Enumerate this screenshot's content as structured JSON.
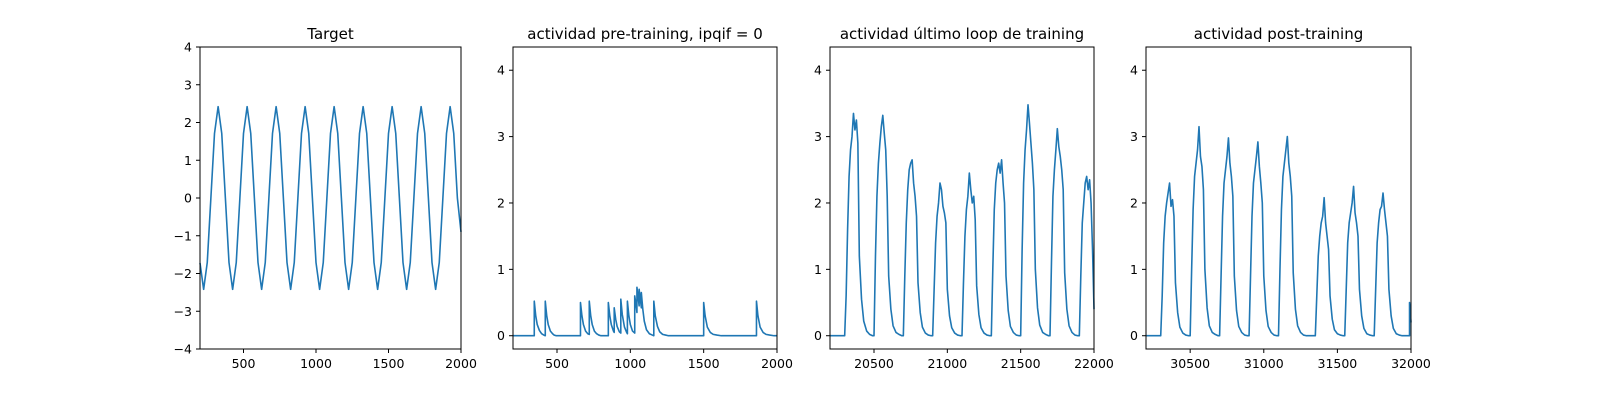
{
  "chart_data": [
    {
      "type": "line",
      "title": "Target",
      "xlabel": "",
      "ylabel": "",
      "xlim": [
        200,
        2000
      ],
      "ylim": [
        -4,
        4
      ],
      "xticks": [
        500,
        1000,
        1500,
        2000
      ],
      "yticks": [
        -4,
        -3,
        -2,
        -1,
        0,
        1,
        2,
        3,
        4
      ],
      "xtick_labels": [
        "500",
        "1000",
        "1500",
        "2000"
      ],
      "ytick_labels": [
        "−4",
        "−3",
        "−2",
        "−1",
        "0",
        "1",
        "2",
        "3",
        "4"
      ],
      "grid": false,
      "series": [
        {
          "color": "#1f77b4",
          "x": [
            200,
            225,
            250,
            275,
            300,
            325,
            350,
            375,
            400,
            425,
            450,
            475,
            500,
            525,
            550,
            575,
            600,
            625,
            650,
            675,
            700,
            725,
            750,
            775,
            800,
            825,
            850,
            875,
            900,
            925,
            950,
            975,
            1000,
            1025,
            1050,
            1075,
            1100,
            1125,
            1150,
            1175,
            1200,
            1225,
            1250,
            1275,
            1300,
            1325,
            1350,
            1375,
            1400,
            1425,
            1450,
            1475,
            1500,
            1525,
            1550,
            1575,
            1600,
            1625,
            1650,
            1675,
            1700,
            1725,
            1750,
            1775,
            1800,
            1825,
            1850,
            1875,
            1900,
            1925,
            1950,
            1975,
            2000
          ],
          "y": [
            -1.72,
            -2.42,
            -1.71,
            0.0,
            1.71,
            2.42,
            1.71,
            0.0,
            -1.71,
            -2.42,
            -1.71,
            0.0,
            1.71,
            2.42,
            1.71,
            0.0,
            -1.71,
            -2.42,
            -1.71,
            0.0,
            1.71,
            2.42,
            1.71,
            0.0,
            -1.71,
            -2.42,
            -1.71,
            0.0,
            1.71,
            2.42,
            1.71,
            0.0,
            -1.71,
            -2.42,
            -1.71,
            0.0,
            1.71,
            2.42,
            1.71,
            0.0,
            -1.71,
            -2.42,
            -1.71,
            0.0,
            1.71,
            2.42,
            1.71,
            0.0,
            -1.71,
            -2.42,
            -1.71,
            0.0,
            1.71,
            2.42,
            1.71,
            0.0,
            -1.71,
            -2.42,
            -1.71,
            0.0,
            1.71,
            2.42,
            1.71,
            0.0,
            -1.71,
            -2.42,
            -1.71,
            0.0,
            1.71,
            2.42,
            1.71,
            0.0,
            -0.9
          ]
        }
      ]
    },
    {
      "type": "line",
      "title": "actividad pre-training, ipqif = 0",
      "xlabel": "",
      "ylabel": "",
      "xlim": [
        200,
        2000
      ],
      "ylim": [
        -0.2,
        4.35
      ],
      "xticks": [
        500,
        1000,
        1500,
        2000
      ],
      "yticks": [
        0,
        1,
        2,
        3,
        4
      ],
      "xtick_labels": [
        "500",
        "1000",
        "1500",
        "2000"
      ],
      "ytick_labels": [
        "0",
        "1",
        "2",
        "3",
        "4"
      ],
      "grid": false,
      "series": [
        {
          "color": "#1f77b4",
          "x": [
            200,
            345,
            345,
            355,
            365,
            380,
            395,
            410,
            420,
            420,
            430,
            440,
            455,
            470,
            480,
            495,
            660,
            660,
            670,
            680,
            695,
            710,
            720,
            720,
            730,
            740,
            755,
            770,
            785,
            800,
            850,
            850,
            860,
            870,
            885,
            890,
            890,
            900,
            910,
            925,
            935,
            935,
            945,
            960,
            975,
            980,
            980,
            990,
            1000,
            1015,
            1030,
            1030,
            1040,
            1045,
            1045,
            1055,
            1060,
            1060,
            1070,
            1075,
            1075,
            1085,
            1095,
            1110,
            1130,
            1150,
            1160,
            1160,
            1170,
            1185,
            1200,
            1220,
            1240,
            1260,
            1300,
            1500,
            1500,
            1510,
            1525,
            1545,
            1565,
            1590,
            1620,
            1700,
            1860,
            1860,
            1870,
            1885,
            1905,
            1925,
            1950,
            1980,
            2000
          ],
          "y": [
            0,
            0,
            0.52,
            0.3,
            0.17,
            0.08,
            0.03,
            0.01,
            0,
            0.52,
            0.3,
            0.17,
            0.07,
            0.03,
            0.01,
            0,
            0,
            0.5,
            0.3,
            0.17,
            0.07,
            0.03,
            0.02,
            0.52,
            0.3,
            0.17,
            0.07,
            0.03,
            0.01,
            0,
            0,
            0.5,
            0.3,
            0.17,
            0.07,
            0.05,
            0.42,
            0.25,
            0.14,
            0.06,
            0.04,
            0.55,
            0.32,
            0.13,
            0.05,
            0.03,
            0.52,
            0.3,
            0.17,
            0.07,
            0.04,
            0.6,
            0.45,
            0.35,
            0.73,
            0.55,
            0.45,
            0.7,
            0.52,
            0.42,
            0.65,
            0.4,
            0.22,
            0.09,
            0.03,
            0.01,
            0,
            0.52,
            0.3,
            0.14,
            0.06,
            0.02,
            0.01,
            0,
            0,
            0,
            0.5,
            0.3,
            0.13,
            0.05,
            0.02,
            0.01,
            0,
            0,
            0,
            0.52,
            0.3,
            0.13,
            0.05,
            0.02,
            0.01,
            0,
            0
          ]
        }
      ]
    },
    {
      "type": "line",
      "title": "actividad último loop de training",
      "xlabel": "",
      "ylabel": "",
      "xlim": [
        20200,
        22000
      ],
      "ylim": [
        -0.2,
        4.35
      ],
      "xticks": [
        20500,
        21000,
        21500,
        22000
      ],
      "yticks": [
        0,
        1,
        2,
        3,
        4
      ],
      "xtick_labels": [
        "20500",
        "21000",
        "21500",
        "22000"
      ],
      "ytick_labels": [
        "0",
        "1",
        "2",
        "3",
        "4"
      ],
      "grid": false,
      "series": [
        {
          "color": "#1f77b4",
          "x": [
            20200,
            20300,
            20310,
            20320,
            20330,
            20340,
            20350,
            20360,
            20370,
            20380,
            20390,
            20400,
            20415,
            20430,
            20450,
            20470,
            20490,
            20500,
            20510,
            20520,
            20530,
            20540,
            20550,
            20560,
            20570,
            20580,
            20590,
            20600,
            20615,
            20630,
            20650,
            20670,
            20690,
            20700,
            20710,
            20720,
            20730,
            20740,
            20750,
            20760,
            20770,
            20780,
            20790,
            20800,
            20815,
            20830,
            20850,
            20870,
            20890,
            20900,
            20910,
            20920,
            20930,
            20940,
            20950,
            20960,
            20970,
            20980,
            20990,
            21000,
            21015,
            21030,
            21050,
            21070,
            21090,
            21100,
            21110,
            21120,
            21130,
            21140,
            21150,
            21160,
            21170,
            21180,
            21190,
            21200,
            21215,
            21230,
            21250,
            21270,
            21290,
            21300,
            21310,
            21320,
            21330,
            21340,
            21350,
            21360,
            21370,
            21380,
            21390,
            21400,
            21415,
            21430,
            21450,
            21470,
            21490,
            21500,
            21510,
            21520,
            21530,
            21540,
            21550,
            21560,
            21570,
            21580,
            21590,
            21600,
            21615,
            21630,
            21650,
            21670,
            21690,
            21700,
            21710,
            21720,
            21730,
            21740,
            21750,
            21760,
            21770,
            21780,
            21790,
            21800,
            21815,
            21830,
            21850,
            21870,
            21890,
            21900,
            21910,
            21920,
            21930,
            21940,
            21950,
            21960,
            21970,
            21980,
            21990,
            22000
          ],
          "y": [
            0,
            0,
            0.6,
            1.6,
            2.4,
            2.8,
            3.0,
            3.35,
            3.1,
            3.25,
            2.9,
            1.2,
            0.55,
            0.22,
            0.07,
            0.02,
            0,
            0,
            1.2,
            2.1,
            2.6,
            2.9,
            3.15,
            3.32,
            3.05,
            2.8,
            2.1,
            0.9,
            0.4,
            0.15,
            0.05,
            0.02,
            0,
            0,
            0.9,
            1.7,
            2.2,
            2.5,
            2.6,
            2.65,
            2.3,
            2.1,
            1.8,
            0.8,
            0.35,
            0.13,
            0.04,
            0.01,
            0,
            0,
            0.7,
            1.4,
            1.8,
            2.0,
            2.3,
            2.2,
            1.95,
            1.85,
            1.7,
            0.7,
            0.3,
            0.12,
            0.04,
            0.01,
            0,
            0,
            0.8,
            1.5,
            1.9,
            2.1,
            2.45,
            2.2,
            2.0,
            2.1,
            1.75,
            0.75,
            0.32,
            0.12,
            0.04,
            0.01,
            0,
            0,
            1.0,
            1.9,
            2.3,
            2.5,
            2.6,
            2.45,
            2.65,
            2.3,
            2.0,
            0.9,
            0.38,
            0.14,
            0.05,
            0.01,
            0,
            0,
            1.3,
            2.3,
            2.8,
            3.1,
            3.48,
            3.2,
            2.9,
            2.6,
            2.2,
            1.0,
            0.42,
            0.16,
            0.05,
            0.02,
            0,
            0,
            1.1,
            2.1,
            2.5,
            2.8,
            3.12,
            2.85,
            2.7,
            2.5,
            2.2,
            0.95,
            0.4,
            0.15,
            0.05,
            0.01,
            0,
            0,
            0.9,
            1.7,
            2.0,
            2.3,
            2.4,
            2.2,
            2.35,
            2.0,
            1.3,
            0.4
          ]
        }
      ]
    },
    {
      "type": "line",
      "title": "actividad post-training",
      "xlabel": "",
      "ylabel": "",
      "xlim": [
        30200,
        32000
      ],
      "ylim": [
        -0.2,
        4.35
      ],
      "xticks": [
        30500,
        31000,
        31500,
        32000
      ],
      "yticks": [
        0,
        1,
        2,
        3,
        4
      ],
      "xtick_labels": [
        "30500",
        "31000",
        "31500",
        "32000"
      ],
      "ytick_labels": [
        "0",
        "1",
        "2",
        "3",
        "4"
      ],
      "grid": false,
      "series": [
        {
          "color": "#1f77b4",
          "x": [
            30200,
            30300,
            30310,
            30320,
            30330,
            30340,
            30350,
            30360,
            30370,
            30380,
            30390,
            30400,
            30415,
            30430,
            30450,
            30470,
            30490,
            30500,
            30510,
            30520,
            30530,
            30540,
            30550,
            30560,
            30570,
            30580,
            30590,
            30600,
            30615,
            30630,
            30650,
            30670,
            30690,
            30700,
            30710,
            30720,
            30730,
            30740,
            30750,
            30760,
            30770,
            30780,
            30790,
            30800,
            30815,
            30830,
            30850,
            30870,
            30890,
            30900,
            30910,
            30920,
            30930,
            30940,
            30950,
            30960,
            30970,
            30980,
            30990,
            31000,
            31015,
            31030,
            31050,
            31070,
            31090,
            31100,
            31110,
            31120,
            31130,
            31140,
            31150,
            31160,
            31170,
            31180,
            31190,
            31200,
            31215,
            31230,
            31250,
            31270,
            31290,
            31350,
            31360,
            31370,
            31380,
            31390,
            31400,
            31410,
            31420,
            31430,
            31440,
            31450,
            31465,
            31480,
            31500,
            31520,
            31540,
            31550,
            31560,
            31570,
            31580,
            31590,
            31600,
            31610,
            31620,
            31630,
            31640,
            31650,
            31665,
            31680,
            31700,
            31720,
            31740,
            31750,
            31760,
            31770,
            31780,
            31790,
            31800,
            31810,
            31820,
            31830,
            31840,
            31850,
            31865,
            31880,
            31900,
            31920,
            31940,
            31990,
            31990,
            32000
          ],
          "y": [
            0,
            0,
            0.6,
            1.4,
            1.8,
            2.0,
            2.15,
            2.3,
            1.95,
            2.05,
            1.8,
            0.8,
            0.35,
            0.13,
            0.04,
            0.01,
            0,
            0,
            1.0,
            1.9,
            2.4,
            2.6,
            2.8,
            3.15,
            2.7,
            2.55,
            2.2,
            1.0,
            0.42,
            0.15,
            0.05,
            0.02,
            0,
            0,
            0.9,
            1.8,
            2.3,
            2.5,
            2.7,
            2.98,
            2.6,
            2.4,
            2.1,
            0.9,
            0.38,
            0.14,
            0.05,
            0.01,
            0,
            0,
            0.9,
            1.8,
            2.3,
            2.5,
            2.7,
            2.92,
            2.55,
            2.3,
            2.0,
            0.9,
            0.38,
            0.14,
            0.05,
            0.01,
            0,
            0,
            1.0,
            1.9,
            2.4,
            2.6,
            2.8,
            3.0,
            2.6,
            2.4,
            2.1,
            0.95,
            0.4,
            0.15,
            0.05,
            0.01,
            0,
            0,
            0.6,
            1.2,
            1.5,
            1.7,
            1.8,
            2.08,
            1.7,
            1.5,
            1.3,
            0.6,
            0.25,
            0.09,
            0.03,
            0.01,
            0,
            0,
            0.7,
            1.4,
            1.7,
            1.85,
            2.0,
            2.25,
            1.85,
            1.7,
            1.5,
            0.7,
            0.3,
            0.11,
            0.03,
            0.01,
            0,
            0,
            0.7,
            1.4,
            1.7,
            1.9,
            1.95,
            2.15,
            1.9,
            1.7,
            1.5,
            0.7,
            0.3,
            0.11,
            0.03,
            0.01,
            0,
            0,
            0.5,
            0.2
          ]
        }
      ]
    }
  ]
}
